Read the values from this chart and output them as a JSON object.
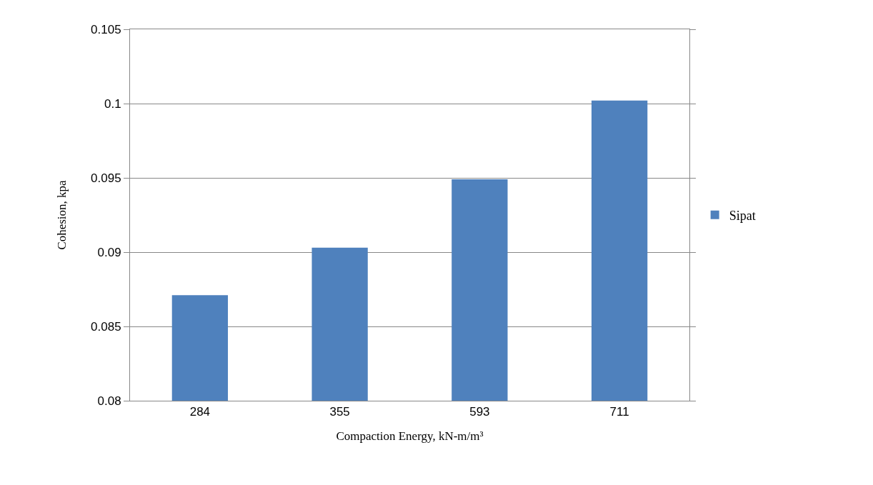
{
  "chart_data": {
    "type": "bar",
    "xlabel": "Compaction Energy, kN-m/m³",
    "ylabel": "Cohesion, kpa",
    "categories": [
      "284",
      "355",
      "593",
      "711"
    ],
    "series": [
      {
        "name": "Sipat",
        "color": "#4f81bd",
        "values": [
          0.0871,
          0.0903,
          0.0949,
          0.1002
        ]
      }
    ],
    "ylim": [
      0.08,
      0.105
    ],
    "yticks": [
      0.08,
      0.085,
      0.09,
      0.095,
      0.1,
      0.105
    ],
    "grid": "y",
    "legend": "right"
  }
}
